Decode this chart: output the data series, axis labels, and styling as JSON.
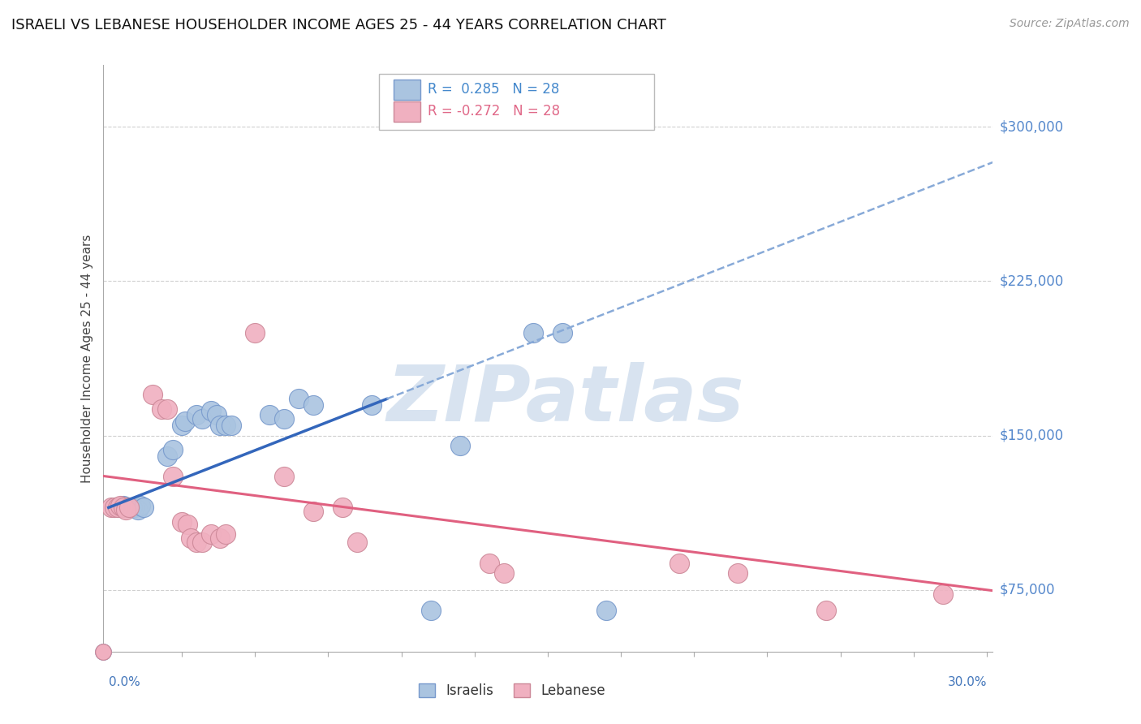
{
  "title": "ISRAELI VS LEBANESE HOUSEHOLDER INCOME AGES 25 - 44 YEARS CORRELATION CHART",
  "source": "Source: ZipAtlas.com",
  "ylabel": "Householder Income Ages 25 - 44 years",
  "xlim": [
    -0.002,
    0.302
  ],
  "ylim": [
    45000,
    330000
  ],
  "ytick_vals": [
    75000,
    150000,
    225000,
    300000
  ],
  "ytick_labels": [
    "$75,000",
    "$150,000",
    "$225,000",
    "$300,000"
  ],
  "xtick_vals": [
    0.0,
    0.025,
    0.05,
    0.075,
    0.1,
    0.125,
    0.15,
    0.175,
    0.2,
    0.225,
    0.25,
    0.275,
    0.3
  ],
  "grid_color": "#d0d0d0",
  "israeli_color": "#aac4e0",
  "israeli_edge": "#7799cc",
  "lebanese_color": "#f0b0c0",
  "lebanese_edge": "#cc8898",
  "trend_blue_solid": "#3366bb",
  "trend_blue_dash": "#88aad8",
  "trend_pink": "#e06080",
  "watermark_color": "#c8d8ea",
  "israeli_dots": [
    [
      0.002,
      115000
    ],
    [
      0.003,
      115000
    ],
    [
      0.004,
      115000
    ],
    [
      0.005,
      116000
    ],
    [
      0.006,
      115000
    ],
    [
      0.007,
      115000
    ],
    [
      0.008,
      115000
    ],
    [
      0.009,
      115000
    ],
    [
      0.01,
      114000
    ],
    [
      0.011,
      116000
    ],
    [
      0.012,
      115000
    ],
    [
      0.02,
      140000
    ],
    [
      0.022,
      143000
    ],
    [
      0.025,
      155000
    ],
    [
      0.026,
      157000
    ],
    [
      0.03,
      160000
    ],
    [
      0.032,
      158000
    ],
    [
      0.035,
      162000
    ],
    [
      0.037,
      160000
    ],
    [
      0.038,
      155000
    ],
    [
      0.04,
      155000
    ],
    [
      0.042,
      155000
    ],
    [
      0.055,
      160000
    ],
    [
      0.06,
      158000
    ],
    [
      0.065,
      168000
    ],
    [
      0.07,
      165000
    ],
    [
      0.09,
      165000
    ],
    [
      0.11,
      65000
    ],
    [
      0.12,
      145000
    ],
    [
      0.145,
      200000
    ],
    [
      0.155,
      200000
    ],
    [
      0.17,
      65000
    ]
  ],
  "lebanese_dots": [
    [
      0.001,
      115000
    ],
    [
      0.002,
      115000
    ],
    [
      0.003,
      115000
    ],
    [
      0.004,
      116000
    ],
    [
      0.005,
      115000
    ],
    [
      0.006,
      114000
    ],
    [
      0.007,
      115000
    ],
    [
      0.015,
      170000
    ],
    [
      0.018,
      163000
    ],
    [
      0.02,
      163000
    ],
    [
      0.022,
      130000
    ],
    [
      0.025,
      108000
    ],
    [
      0.027,
      107000
    ],
    [
      0.028,
      100000
    ],
    [
      0.03,
      98000
    ],
    [
      0.032,
      98000
    ],
    [
      0.035,
      102000
    ],
    [
      0.038,
      100000
    ],
    [
      0.04,
      102000
    ],
    [
      0.05,
      200000
    ],
    [
      0.06,
      130000
    ],
    [
      0.07,
      113000
    ],
    [
      0.08,
      115000
    ],
    [
      0.085,
      98000
    ],
    [
      0.13,
      88000
    ],
    [
      0.135,
      83000
    ],
    [
      0.195,
      88000
    ],
    [
      0.215,
      83000
    ],
    [
      0.245,
      65000
    ],
    [
      0.285,
      73000
    ]
  ]
}
